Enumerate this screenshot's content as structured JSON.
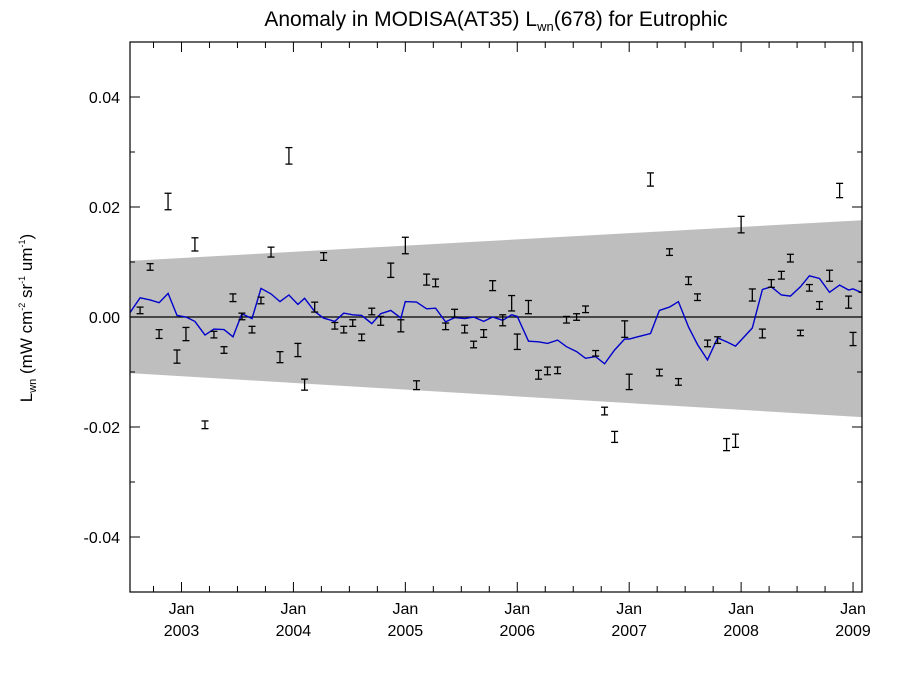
{
  "chart_data": {
    "type": "scatter",
    "title": {
      "prefix": "Anomaly in MODISA(AT35) L",
      "sub": "wn",
      "suffix": "(678) for Eutrophic"
    },
    "ylabel": {
      "main": "L",
      "sub": "wn",
      "units": [
        {
          "t": " (mW cm"
        },
        {
          "sup": "-2"
        },
        {
          "t": " sr"
        },
        {
          "sup": "-1"
        },
        {
          "t": " um"
        },
        {
          "sup": "-1"
        },
        {
          "t": ")"
        }
      ]
    },
    "xlim": [
      2002.54,
      2009.08
    ],
    "ylim": [
      -0.05,
      0.05
    ],
    "yticks": [
      -0.04,
      -0.02,
      0.0,
      0.02,
      0.04
    ],
    "ytick_labels": [
      "-0.04",
      "-0.02",
      "0.00",
      "0.02",
      "0.04"
    ],
    "xticks": [
      {
        "x": 2003.0,
        "month": "Jan",
        "year": "2003"
      },
      {
        "x": 2004.0,
        "month": "Jan",
        "year": "2004"
      },
      {
        "x": 2005.0,
        "month": "Jan",
        "year": "2005"
      },
      {
        "x": 2006.0,
        "month": "Jan",
        "year": "2006"
      },
      {
        "x": 2007.0,
        "month": "Jan",
        "year": "2007"
      },
      {
        "x": 2008.0,
        "month": "Jan",
        "year": "2008"
      },
      {
        "x": 2009.0,
        "month": "Jan",
        "year": "2009"
      }
    ],
    "zero_line": 0.0,
    "band": {
      "x_start": 2002.54,
      "upper_start": 0.0102,
      "lower_start": -0.0102,
      "x_end": 2009.08,
      "upper_end": 0.0176,
      "lower_end": -0.0182,
      "color": "#bebebe"
    },
    "colors": {
      "points": "#000000",
      "smooth": "#0000cc",
      "zero": "#000000"
    },
    "points": [
      {
        "x": 2002.63,
        "y": 0.0012,
        "e": 0.0006
      },
      {
        "x": 2002.72,
        "y": 0.0091,
        "e": 0.0006
      },
      {
        "x": 2002.8,
        "y": -0.0031,
        "e": 0.0008
      },
      {
        "x": 2002.88,
        "y": 0.021,
        "e": 0.0015
      },
      {
        "x": 2002.96,
        "y": -0.0072,
        "e": 0.0012
      },
      {
        "x": 2003.04,
        "y": -0.0031,
        "e": 0.0012
      },
      {
        "x": 2003.12,
        "y": 0.0132,
        "e": 0.0012
      },
      {
        "x": 2003.21,
        "y": -0.0196,
        "e": 0.0007
      },
      {
        "x": 2003.29,
        "y": -0.0032,
        "e": 0.0006
      },
      {
        "x": 2003.38,
        "y": -0.006,
        "e": 0.0006
      },
      {
        "x": 2003.46,
        "y": 0.0035,
        "e": 0.0007
      },
      {
        "x": 2003.54,
        "y": 0.0001,
        "e": 0.0006
      },
      {
        "x": 2003.63,
        "y": -0.0023,
        "e": 0.0006
      },
      {
        "x": 2003.71,
        "y": 0.003,
        "e": 0.0006
      },
      {
        "x": 2003.8,
        "y": 0.0118,
        "e": 0.0009
      },
      {
        "x": 2003.88,
        "y": -0.0073,
        "e": 0.001
      },
      {
        "x": 2003.96,
        "y": 0.0293,
        "e": 0.0015
      },
      {
        "x": 2004.04,
        "y": -0.006,
        "e": 0.0012
      },
      {
        "x": 2004.1,
        "y": -0.0123,
        "e": 0.001
      },
      {
        "x": 2004.19,
        "y": 0.0018,
        "e": 0.0009
      },
      {
        "x": 2004.27,
        "y": 0.011,
        "e": 0.0007
      },
      {
        "x": 2004.37,
        "y": -0.0016,
        "e": 0.0006
      },
      {
        "x": 2004.45,
        "y": -0.0023,
        "e": 0.0006
      },
      {
        "x": 2004.53,
        "y": -0.0011,
        "e": 0.0006
      },
      {
        "x": 2004.61,
        "y": -0.0037,
        "e": 0.0006
      },
      {
        "x": 2004.7,
        "y": 0.001,
        "e": 0.0006
      },
      {
        "x": 2004.78,
        "y": -0.0007,
        "e": 0.0008
      },
      {
        "x": 2004.87,
        "y": 0.0085,
        "e": 0.0013
      },
      {
        "x": 2004.96,
        "y": -0.0016,
        "e": 0.0011
      },
      {
        "x": 2005.0,
        "y": 0.013,
        "e": 0.0015
      },
      {
        "x": 2005.1,
        "y": -0.0124,
        "e": 0.0008
      },
      {
        "x": 2005.19,
        "y": 0.0068,
        "e": 0.001
      },
      {
        "x": 2005.27,
        "y": 0.0062,
        "e": 0.0007
      },
      {
        "x": 2005.36,
        "y": -0.0017,
        "e": 0.0006
      },
      {
        "x": 2005.44,
        "y": 0.0007,
        "e": 0.0007
      },
      {
        "x": 2005.53,
        "y": -0.0022,
        "e": 0.0007
      },
      {
        "x": 2005.61,
        "y": -0.005,
        "e": 0.0006
      },
      {
        "x": 2005.7,
        "y": -0.003,
        "e": 0.0007
      },
      {
        "x": 2005.78,
        "y": 0.0057,
        "e": 0.0009
      },
      {
        "x": 2005.87,
        "y": -0.0006,
        "e": 0.001
      },
      {
        "x": 2005.95,
        "y": 0.0025,
        "e": 0.0014
      },
      {
        "x": 2006.0,
        "y": -0.0045,
        "e": 0.0014
      },
      {
        "x": 2006.1,
        "y": 0.0018,
        "e": 0.0012
      },
      {
        "x": 2006.19,
        "y": -0.0105,
        "e": 0.0008
      },
      {
        "x": 2006.27,
        "y": -0.0098,
        "e": 0.0007
      },
      {
        "x": 2006.36,
        "y": -0.0097,
        "e": 0.0006
      },
      {
        "x": 2006.44,
        "y": -0.0005,
        "e": 0.0006
      },
      {
        "x": 2006.53,
        "y": 0.0,
        "e": 0.0006
      },
      {
        "x": 2006.61,
        "y": 0.0014,
        "e": 0.0006
      },
      {
        "x": 2006.7,
        "y": -0.0066,
        "e": 0.0005
      },
      {
        "x": 2006.78,
        "y": -0.0171,
        "e": 0.0007
      },
      {
        "x": 2006.87,
        "y": -0.0218,
        "e": 0.001
      },
      {
        "x": 2006.96,
        "y": -0.0022,
        "e": 0.0015
      },
      {
        "x": 2007.0,
        "y": -0.0118,
        "e": 0.0014
      },
      {
        "x": 2007.19,
        "y": 0.025,
        "e": 0.0012
      },
      {
        "x": 2007.27,
        "y": -0.0101,
        "e": 0.0006
      },
      {
        "x": 2007.36,
        "y": 0.0118,
        "e": 0.0006
      },
      {
        "x": 2007.44,
        "y": -0.0118,
        "e": 0.0006
      },
      {
        "x": 2007.53,
        "y": 0.0066,
        "e": 0.0007
      },
      {
        "x": 2007.61,
        "y": 0.0036,
        "e": 0.0006
      },
      {
        "x": 2007.7,
        "y": -0.0048,
        "e": 0.0006
      },
      {
        "x": 2007.79,
        "y": -0.0042,
        "e": 0.0006
      },
      {
        "x": 2007.87,
        "y": -0.0232,
        "e": 0.0011
      },
      {
        "x": 2007.95,
        "y": -0.0225,
        "e": 0.0012
      },
      {
        "x": 2008.0,
        "y": 0.0168,
        "e": 0.0015
      },
      {
        "x": 2008.1,
        "y": 0.004,
        "e": 0.0011
      },
      {
        "x": 2008.19,
        "y": -0.003,
        "e": 0.0008
      },
      {
        "x": 2008.27,
        "y": 0.0061,
        "e": 0.0007
      },
      {
        "x": 2008.36,
        "y": 0.0076,
        "e": 0.0007
      },
      {
        "x": 2008.44,
        "y": 0.0107,
        "e": 0.0007
      },
      {
        "x": 2008.53,
        "y": -0.0029,
        "e": 0.0005
      },
      {
        "x": 2008.61,
        "y": 0.0053,
        "e": 0.0006
      },
      {
        "x": 2008.7,
        "y": 0.0021,
        "e": 0.0007
      },
      {
        "x": 2008.79,
        "y": 0.0075,
        "e": 0.001
      },
      {
        "x": 2008.88,
        "y": 0.023,
        "e": 0.0013
      },
      {
        "x": 2008.96,
        "y": 0.0027,
        "e": 0.0011
      },
      {
        "x": 2009.0,
        "y": -0.004,
        "e": 0.0012
      },
      {
        "x": 2009.08,
        "y": 0.0055,
        "e": 0.001
      }
    ],
    "smooth": [
      [
        2002.54,
        0.0008
      ],
      [
        2002.63,
        0.0035
      ],
      [
        2002.72,
        0.0031
      ],
      [
        2002.8,
        0.0026
      ],
      [
        2002.88,
        0.0043
      ],
      [
        2002.96,
        0.0003
      ],
      [
        2003.04,
        0.0
      ],
      [
        2003.12,
        -0.0008
      ],
      [
        2003.21,
        -0.0033
      ],
      [
        2003.29,
        -0.0022
      ],
      [
        2003.38,
        -0.0023
      ],
      [
        2003.46,
        -0.0036
      ],
      [
        2003.54,
        0.0006
      ],
      [
        2003.63,
        -0.0003
      ],
      [
        2003.71,
        0.0052
      ],
      [
        2003.8,
        0.0042
      ],
      [
        2003.88,
        0.0028
      ],
      [
        2003.96,
        0.004
      ],
      [
        2004.04,
        0.0023
      ],
      [
        2004.1,
        0.0034
      ],
      [
        2004.19,
        0.001
      ],
      [
        2004.27,
        -0.0002
      ],
      [
        2004.37,
        -0.0008
      ],
      [
        2004.45,
        0.0007
      ],
      [
        2004.53,
        0.0004
      ],
      [
        2004.61,
        0.0003
      ],
      [
        2004.7,
        -0.0012
      ],
      [
        2004.78,
        0.0006
      ],
      [
        2004.87,
        0.0012
      ],
      [
        2004.96,
        -0.0002
      ],
      [
        2005.0,
        0.0028
      ],
      [
        2005.1,
        0.0027
      ],
      [
        2005.19,
        0.0015
      ],
      [
        2005.27,
        0.0016
      ],
      [
        2005.36,
        -0.0009
      ],
      [
        2005.44,
        -0.0001
      ],
      [
        2005.53,
        -0.0003
      ],
      [
        2005.61,
        0.0
      ],
      [
        2005.7,
        -0.0008
      ],
      [
        2005.78,
        0.0
      ],
      [
        2005.87,
        -0.0006
      ],
      [
        2005.95,
        0.0004
      ],
      [
        2006.0,
        0.0001
      ],
      [
        2006.1,
        -0.0044
      ],
      [
        2006.19,
        -0.0045
      ],
      [
        2006.27,
        -0.0048
      ],
      [
        2006.36,
        -0.0042
      ],
      [
        2006.44,
        -0.0054
      ],
      [
        2006.53,
        -0.0063
      ],
      [
        2006.61,
        -0.0075
      ],
      [
        2006.7,
        -0.0072
      ],
      [
        2006.78,
        -0.0085
      ],
      [
        2006.87,
        -0.006
      ],
      [
        2006.96,
        -0.004
      ],
      [
        2007.0,
        -0.004
      ],
      [
        2007.19,
        -0.003
      ],
      [
        2007.27,
        0.0012
      ],
      [
        2007.36,
        0.0018
      ],
      [
        2007.44,
        0.0028
      ],
      [
        2007.53,
        -0.0018
      ],
      [
        2007.61,
        -0.005
      ],
      [
        2007.7,
        -0.0078
      ],
      [
        2007.79,
        -0.0038
      ],
      [
        2007.87,
        -0.0045
      ],
      [
        2007.95,
        -0.0053
      ],
      [
        2008.0,
        -0.0042
      ],
      [
        2008.1,
        -0.002
      ],
      [
        2008.19,
        0.005
      ],
      [
        2008.27,
        0.0055
      ],
      [
        2008.36,
        0.004
      ],
      [
        2008.44,
        0.0038
      ],
      [
        2008.53,
        0.0055
      ],
      [
        2008.61,
        0.0075
      ],
      [
        2008.7,
        0.007
      ],
      [
        2008.79,
        0.0045
      ],
      [
        2008.88,
        0.0058
      ],
      [
        2008.96,
        0.0049
      ],
      [
        2009.0,
        0.0051
      ],
      [
        2009.08,
        0.0044
      ]
    ]
  }
}
